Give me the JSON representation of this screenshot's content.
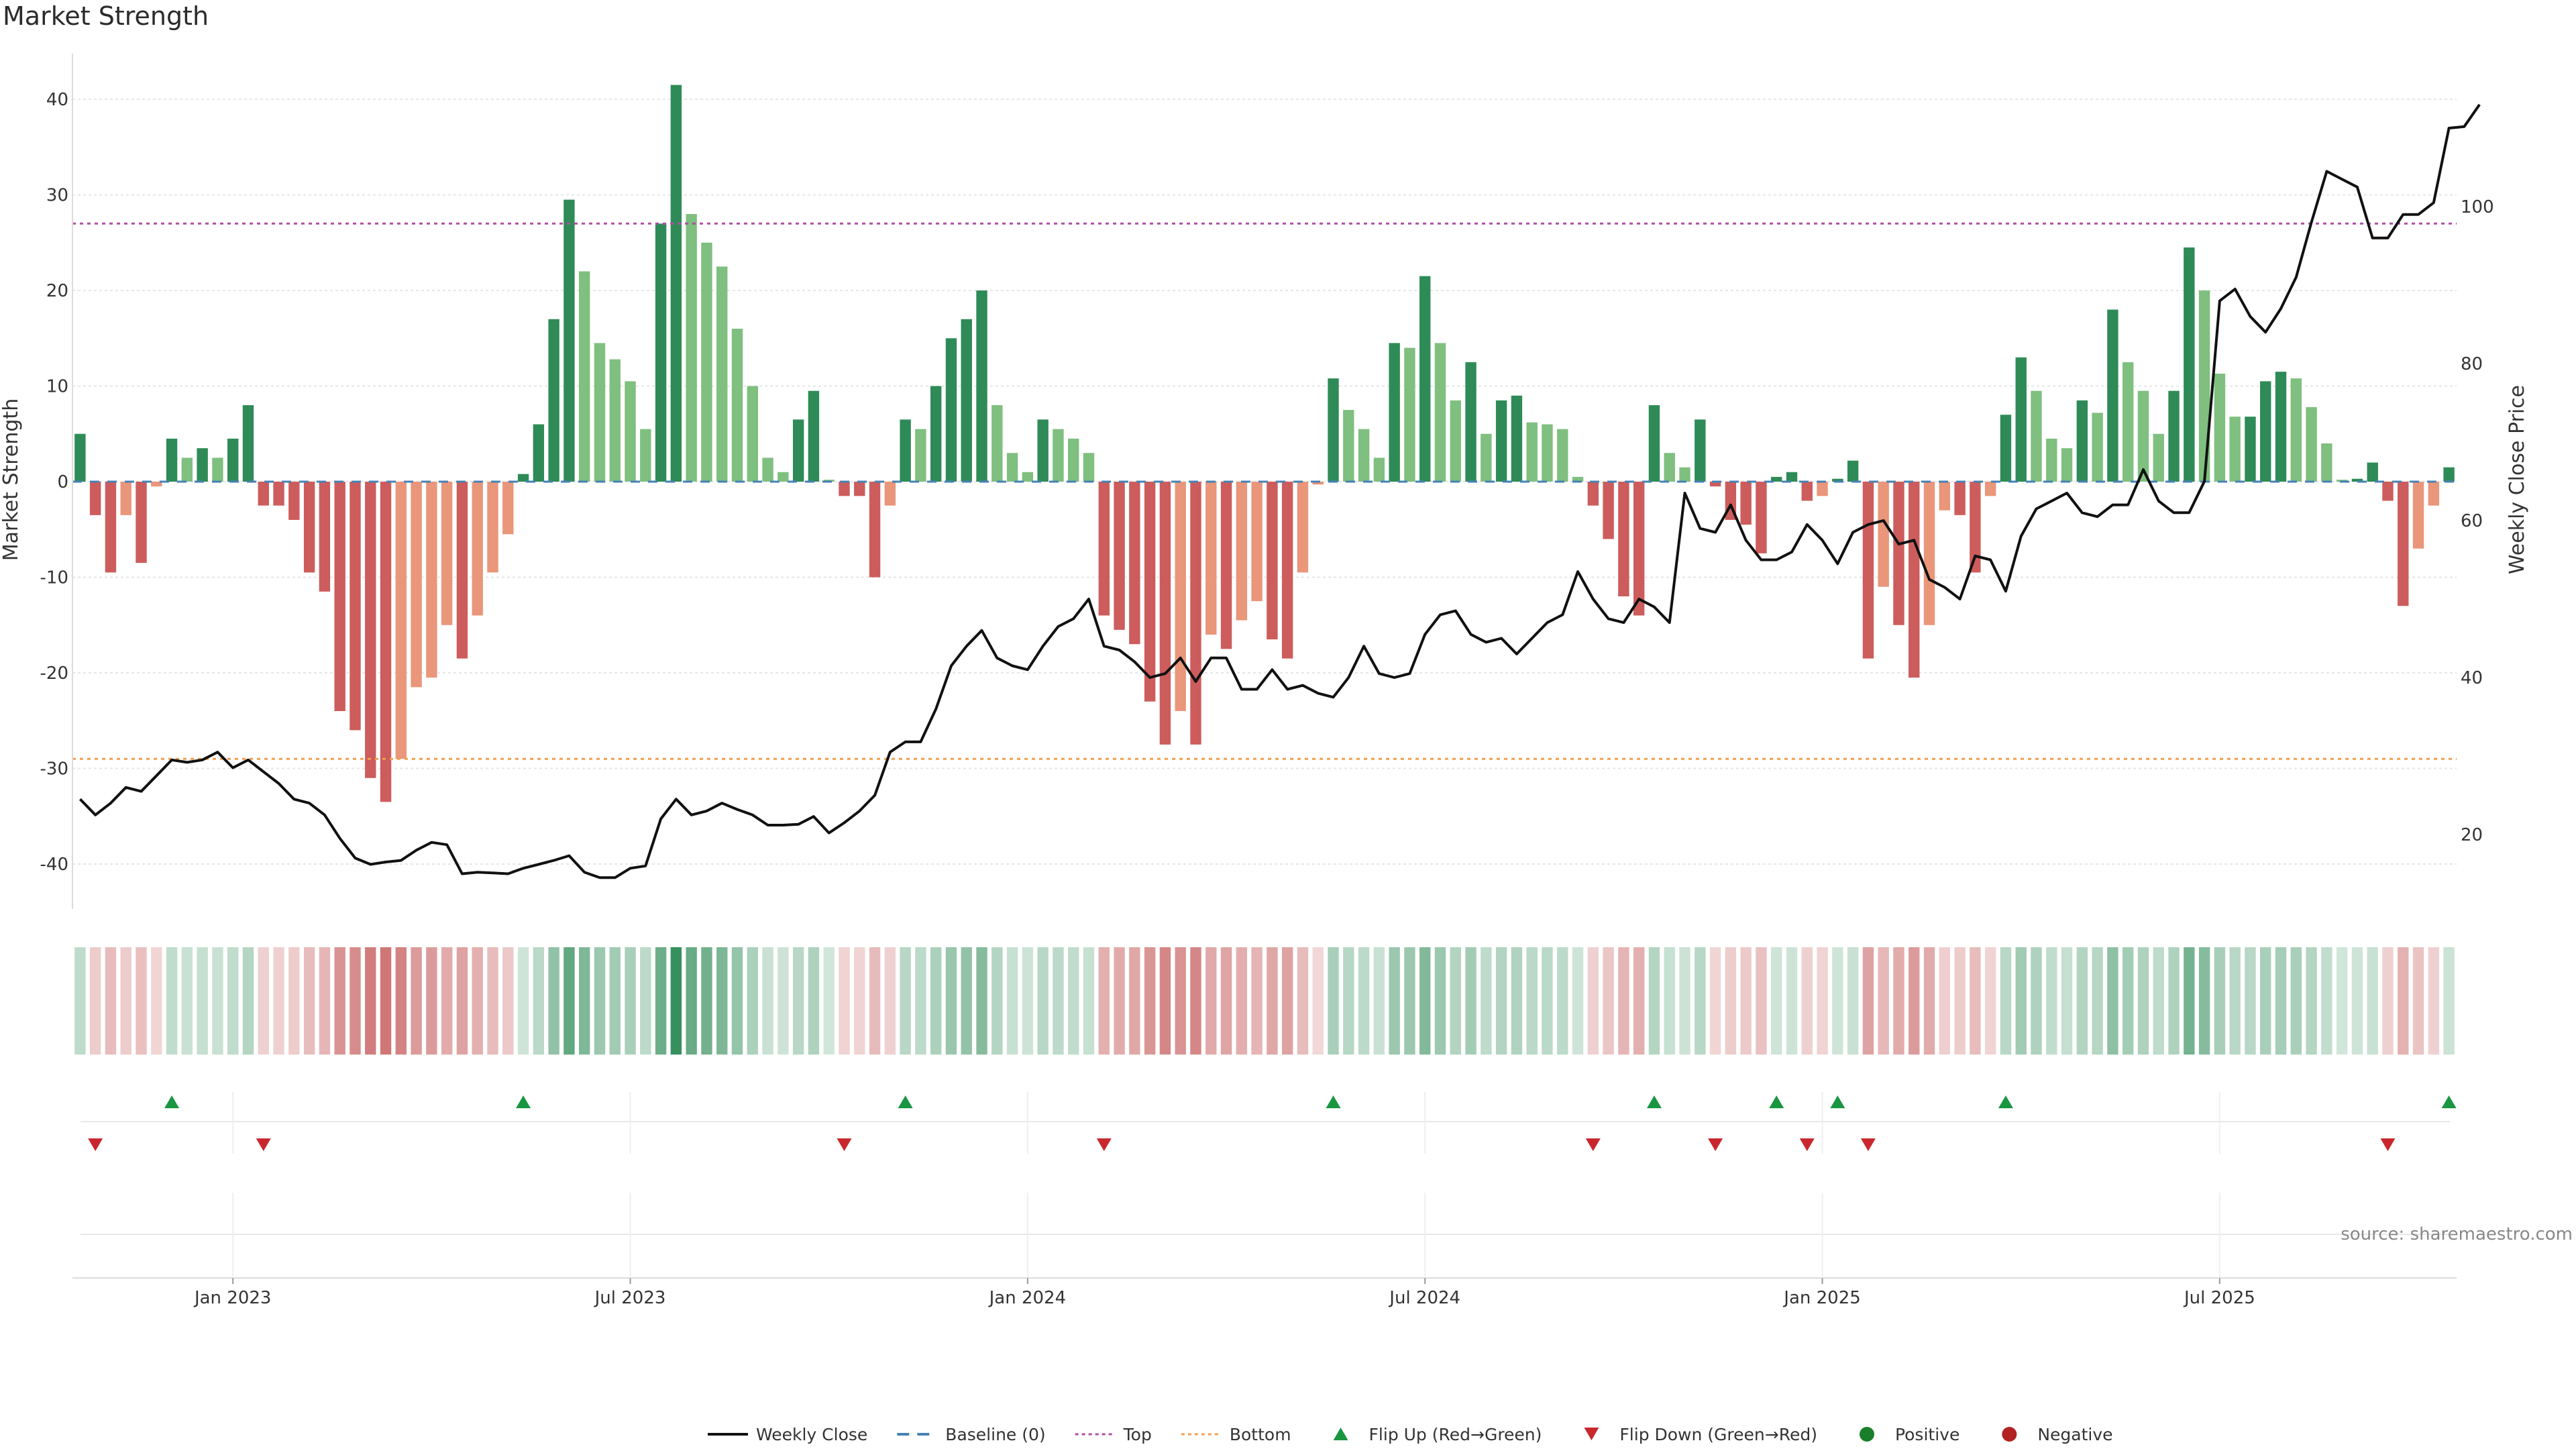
{
  "title": "Market Strength",
  "source": "source: sharemaestro.com",
  "chart_data": {
    "type": "bar",
    "title": "Market Strength",
    "xlabel": "",
    "ylabel": "Market Strength",
    "ylabel_right": "Weekly Close Price",
    "ylim": [
      -45,
      45
    ],
    "yticks": [
      -40,
      -30,
      -20,
      -10,
      0,
      10,
      20,
      30,
      40
    ],
    "ylim_right": [
      11,
      120
    ],
    "yticks_right": [
      20,
      40,
      60,
      80,
      100
    ],
    "top_line": 27,
    "bottom_line": -29,
    "x_ticks": [
      {
        "week": 10,
        "label": "Jan 2023"
      },
      {
        "week": 36,
        "label": "Jul 2023"
      },
      {
        "week": 62,
        "label": "Jan 2024"
      },
      {
        "week": 88,
        "label": "Jul 2024"
      },
      {
        "week": 114,
        "label": "Jan 2025"
      },
      {
        "week": 140,
        "label": "Jul 2025"
      }
    ],
    "strength": [
      5.0,
      -3.5,
      -9.5,
      -3.5,
      -8.5,
      -0.5,
      4.5,
      2.5,
      3.5,
      2.5,
      4.5,
      8.0,
      -2.5,
      -2.5,
      -4.0,
      -9.5,
      -11.5,
      -24.0,
      -26.0,
      -31.0,
      -33.5,
      -29.0,
      -21.5,
      -20.5,
      -15.0,
      -18.5,
      -14.0,
      -9.5,
      -5.5,
      0.8,
      6.0,
      17.0,
      29.5,
      22.0,
      14.5,
      12.8,
      10.5,
      5.5,
      27.0,
      41.5,
      28.0,
      25.0,
      22.5,
      16.0,
      10.0,
      2.5,
      1.0,
      6.5,
      9.5,
      0.2,
      -1.5,
      -1.5,
      -10.0,
      -2.5,
      6.5,
      5.5,
      10.0,
      15.0,
      17.0,
      20.0,
      8.0,
      3.0,
      1.0,
      6.5,
      5.5,
      4.5,
      3.0,
      -14.0,
      -15.5,
      -17.0,
      -23.0,
      -27.5,
      -24.0,
      -27.5,
      -16.0,
      -17.5,
      -14.5,
      -12.5,
      -16.5,
      -18.5,
      -9.5,
      -0.3,
      10.8,
      7.5,
      5.5,
      2.5,
      14.5,
      14.0,
      21.5,
      14.5,
      8.5,
      12.5,
      5.0,
      8.5,
      9.0,
      6.2,
      6.0,
      5.5,
      0.5,
      -2.5,
      -6.0,
      -12.0,
      -14.0,
      8.0,
      3.0,
      1.5,
      6.5,
      -0.5,
      -4.0,
      -4.5,
      -7.5,
      0.5,
      1.0,
      -2.0,
      -1.5,
      0.3,
      2.2,
      -18.5,
      -11.0,
      -15.0,
      -20.5,
      -15.0,
      -3.0,
      -3.5,
      -9.5,
      -1.5,
      7.0,
      13.0,
      9.5,
      4.5,
      3.5,
      8.5,
      7.2,
      18.0,
      12.5,
      9.5,
      5.0,
      9.5,
      24.5,
      20.0,
      11.3,
      6.8,
      6.8,
      10.5,
      11.5,
      10.8,
      7.8,
      4.0,
      0.2,
      0.3,
      2.0,
      -2.0,
      -13.0,
      -7.0,
      -2.5,
      1.5
    ],
    "close": [
      24.5,
      22.5,
      24.0,
      26.0,
      25.5,
      27.5,
      29.5,
      29.2,
      29.5,
      30.5,
      28.5,
      29.5,
      28.0,
      26.5,
      24.5,
      24.0,
      22.5,
      19.5,
      17.0,
      16.2,
      16.5,
      16.7,
      18.0,
      19.0,
      18.7,
      15.0,
      15.2,
      15.1,
      15.0,
      15.7,
      16.2,
      16.7,
      17.3,
      15.2,
      14.5,
      14.5,
      15.7,
      16.0,
      22.0,
      24.5,
      22.5,
      23.0,
      24.0,
      23.2,
      22.5,
      21.2,
      21.2,
      21.3,
      22.3,
      20.2,
      21.5,
      23.0,
      25.0,
      30.5,
      31.8,
      31.8,
      36.0,
      41.5,
      44.0,
      46.0,
      42.5,
      41.5,
      41.0,
      44.0,
      46.5,
      47.5,
      50.0,
      44.0,
      43.5,
      42.0,
      40.0,
      40.5,
      42.5,
      39.5,
      42.5,
      42.5,
      38.5,
      38.5,
      41.0,
      38.5,
      39.0,
      38.0,
      37.5,
      40.0,
      44.0,
      40.5,
      40.0,
      40.5,
      45.5,
      48.0,
      48.5,
      45.5,
      44.5,
      45.0,
      43.0,
      45.0,
      47.0,
      48.0,
      53.5,
      50.0,
      47.5,
      47.0,
      50.0,
      49.0,
      47.0,
      63.5,
      59.0,
      58.5,
      62.0,
      57.5,
      55.0,
      55.0,
      56.0,
      59.5,
      57.5,
      54.5,
      58.5,
      59.5,
      60.0,
      57.0,
      57.5,
      52.5,
      51.5,
      50.0,
      55.5,
      55.0,
      51.0,
      58.0,
      61.5,
      62.5,
      63.5,
      61.0,
      60.5,
      62.0,
      62.0,
      66.5,
      62.5,
      61.0,
      61.0,
      65.0,
      88.0,
      89.5,
      86.0,
      84.0,
      87.0,
      91.0,
      98.0,
      104.5,
      103.5,
      102.5,
      96.0,
      96.0,
      99.0,
      99.0,
      100.5,
      110.0,
      110.2,
      113.0
    ]
  },
  "legend": [
    {
      "label": "Weekly Close",
      "kind": "line"
    },
    {
      "label": "Baseline (0)",
      "kind": "dash"
    },
    {
      "label": "Top",
      "kind": "dotted-top"
    },
    {
      "label": "Bottom",
      "kind": "dotted-bottom"
    },
    {
      "label": "Flip Up (Red→Green)",
      "kind": "up"
    },
    {
      "label": "Flip Down (Green→Red)",
      "kind": "down"
    },
    {
      "label": "Positive",
      "kind": "pos"
    },
    {
      "label": "Negative",
      "kind": "neg"
    }
  ],
  "colors": {
    "pos_strong": "#2e8b57",
    "pos_weak": "#7fbf7f",
    "neg_strong": "#cd5c5c",
    "neg_weak": "#e9967a",
    "close_line": "#111111",
    "baseline": "#4682b4",
    "top": "#b04fa6",
    "bottom": "#f0a050",
    "flip_up": "#1a9641",
    "flip_down": "#c8282d",
    "positive_dot": "#1a7f2a",
    "negative_dot": "#b22222"
  }
}
